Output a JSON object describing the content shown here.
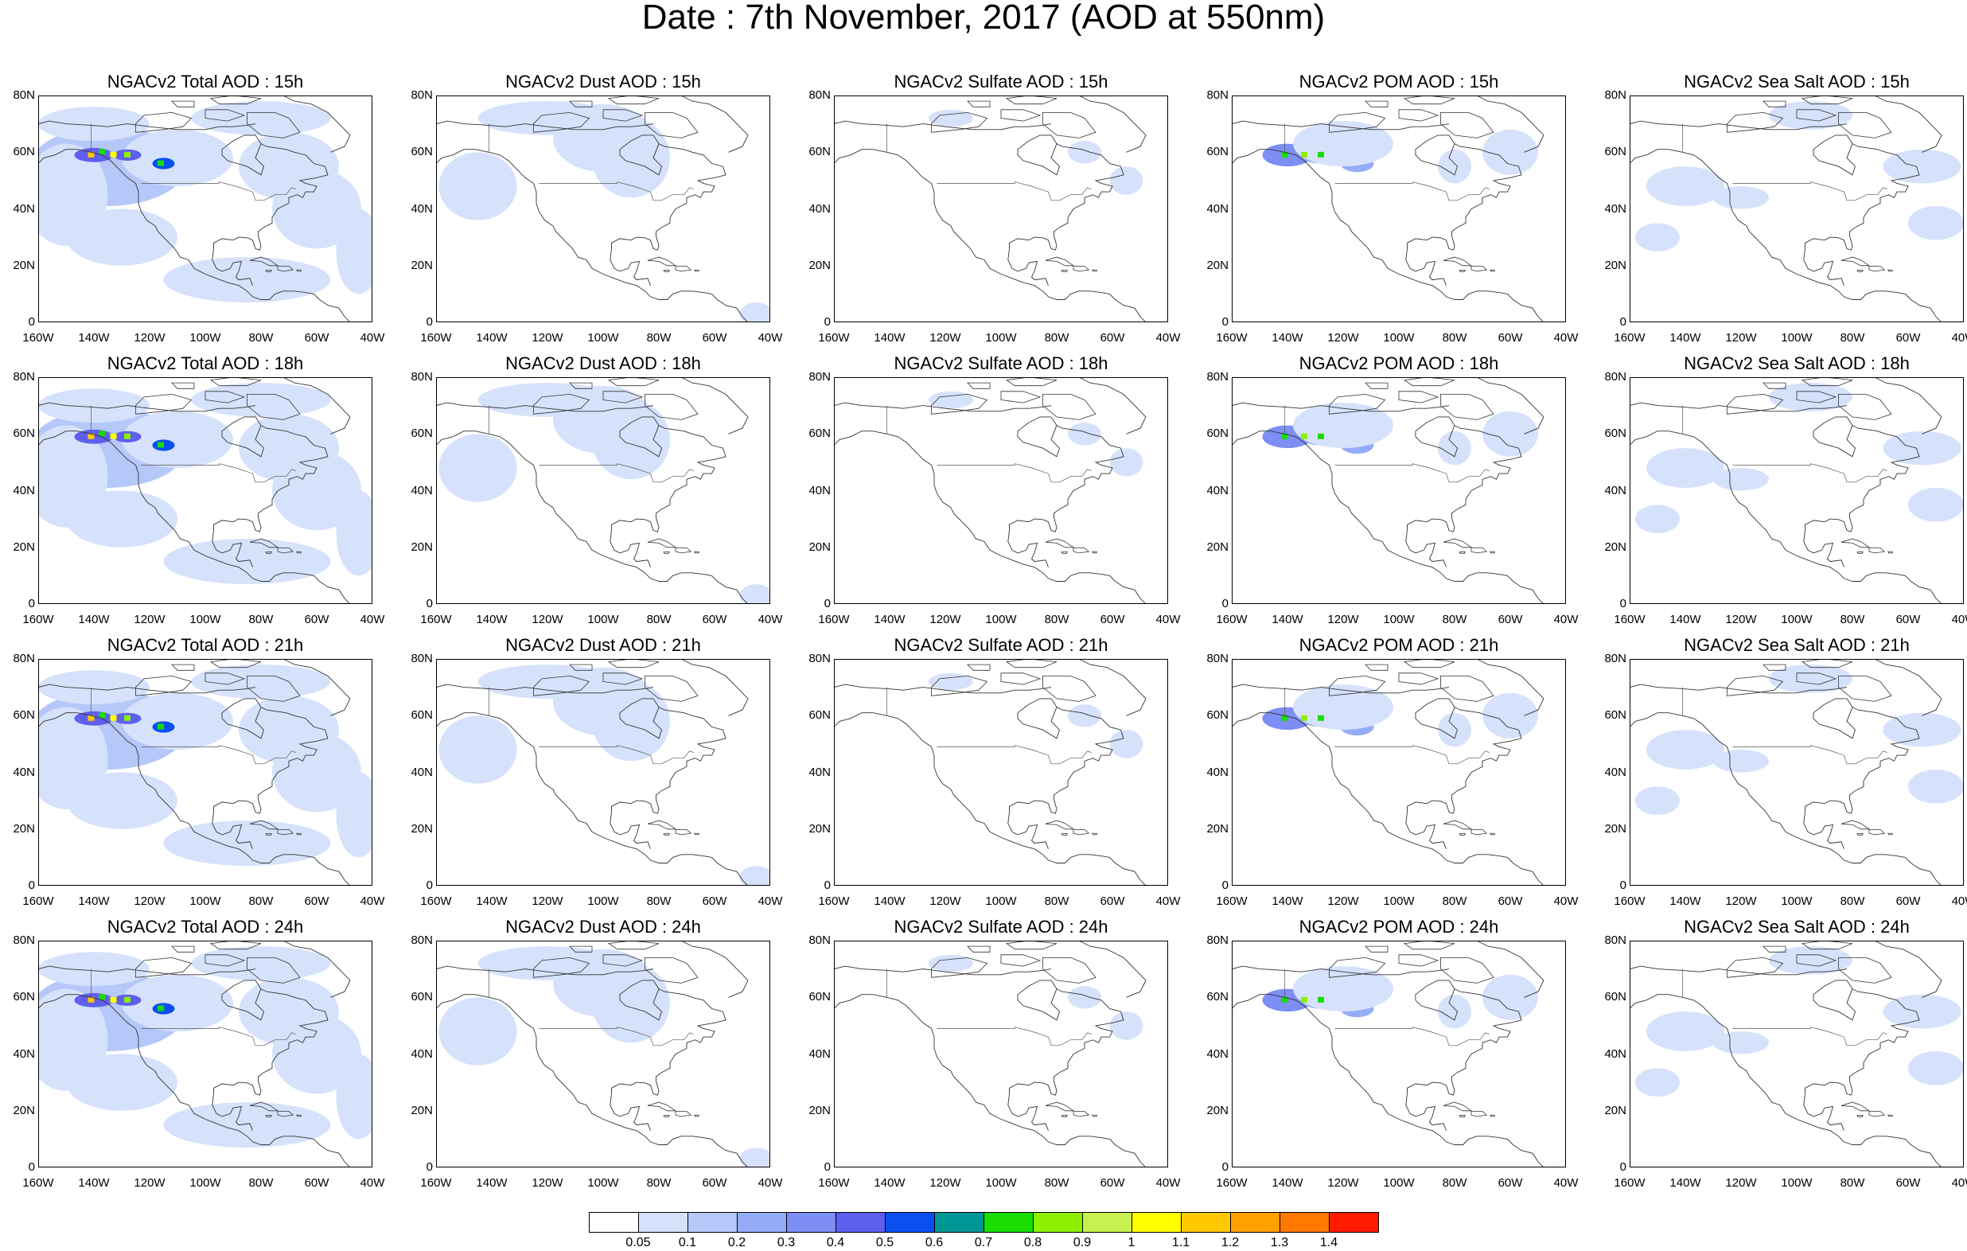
{
  "title": "Date : 7th November, 2017 (AOD at 550nm)",
  "panel_titles": [
    [
      "NGACv2 Total AOD : 15h",
      "NGACv2 Dust AOD : 15h",
      "NGACv2 Sulfate AOD : 15h",
      "NGACv2 POM AOD : 15h",
      "NGACv2 Sea Salt AOD : 15h"
    ],
    [
      "NGACv2 Total AOD : 18h",
      "NGACv2 Dust AOD : 18h",
      "NGACv2 Sulfate AOD : 18h",
      "NGACv2 POM AOD : 18h",
      "NGACv2 Sea Salt AOD : 18h"
    ],
    [
      "NGACv2 Total AOD : 21h",
      "NGACv2 Dust AOD : 21h",
      "NGACv2 Sulfate AOD : 21h",
      "NGACv2 POM AOD : 21h",
      "NGACv2 Sea Salt AOD : 21h"
    ],
    [
      "NGACv2 Total AOD : 24h",
      "NGACv2 Dust AOD : 24h",
      "NGACv2 Sulfate AOD : 24h",
      "NGACv2 POM AOD : 24h",
      "NGACv2 Sea Salt  AOD : 24h"
    ]
  ],
  "y_ticks": [
    "80N",
    "60N",
    "40N",
    "20N",
    "0"
  ],
  "x_ticks": [
    "160W",
    "140W",
    "120W",
    "100W",
    "80W",
    "60W",
    "40W"
  ],
  "colorbar": {
    "colors": [
      "#ffffff",
      "#d6e2fb",
      "#b5c8f9",
      "#95acf8",
      "#7d8ef5",
      "#5f5fef",
      "#0a50f0",
      "#009696",
      "#19dc00",
      "#8cf000",
      "#c8f050",
      "#ffff00",
      "#ffc800",
      "#ffa000",
      "#ff7800",
      "#ff1a00"
    ],
    "labels": [
      "0.05",
      "0.1",
      "0.2",
      "0.3",
      "0.4",
      "0.5",
      "0.6",
      "0.7",
      "0.8",
      "0.9",
      "1",
      "1.1",
      "1.2",
      "1.3",
      "1.4"
    ]
  }
}
